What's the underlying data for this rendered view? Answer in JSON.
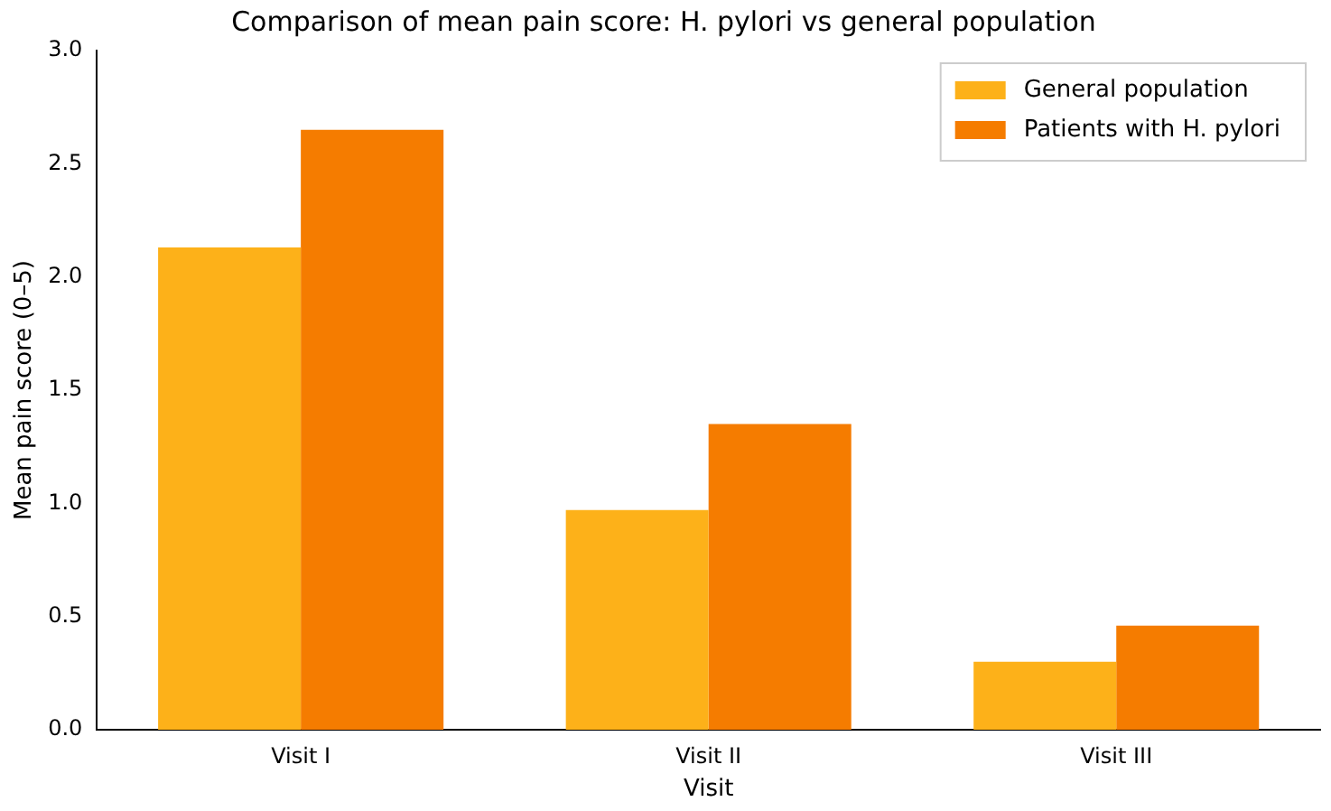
{
  "chart_data": {
    "type": "bar",
    "title": "Comparison of mean pain score: H. pylori vs general population",
    "xlabel": "Visit",
    "ylabel": "Mean pain score (0–5)",
    "categories": [
      "Visit I",
      "Visit II",
      "Visit III"
    ],
    "series": [
      {
        "name": "General population",
        "color": "#fdb119",
        "values": [
          2.13,
          0.97,
          0.3
        ]
      },
      {
        "name": "Patients with H. pylori",
        "color": "#f57c00",
        "values": [
          2.65,
          1.35,
          0.46
        ]
      }
    ],
    "ylim": [
      0,
      3
    ],
    "yticks": [
      {
        "value": 0,
        "label": "0.0"
      },
      {
        "value": 0.5,
        "label": "0.5"
      },
      {
        "value": 1,
        "label": "1.0"
      },
      {
        "value": 1.5,
        "label": "1.5"
      },
      {
        "value": 2,
        "label": "2.0"
      },
      {
        "value": 2.5,
        "label": "2.5"
      },
      {
        "value": 3,
        "label": "3.0"
      }
    ],
    "grid": false,
    "legend": "top right"
  }
}
